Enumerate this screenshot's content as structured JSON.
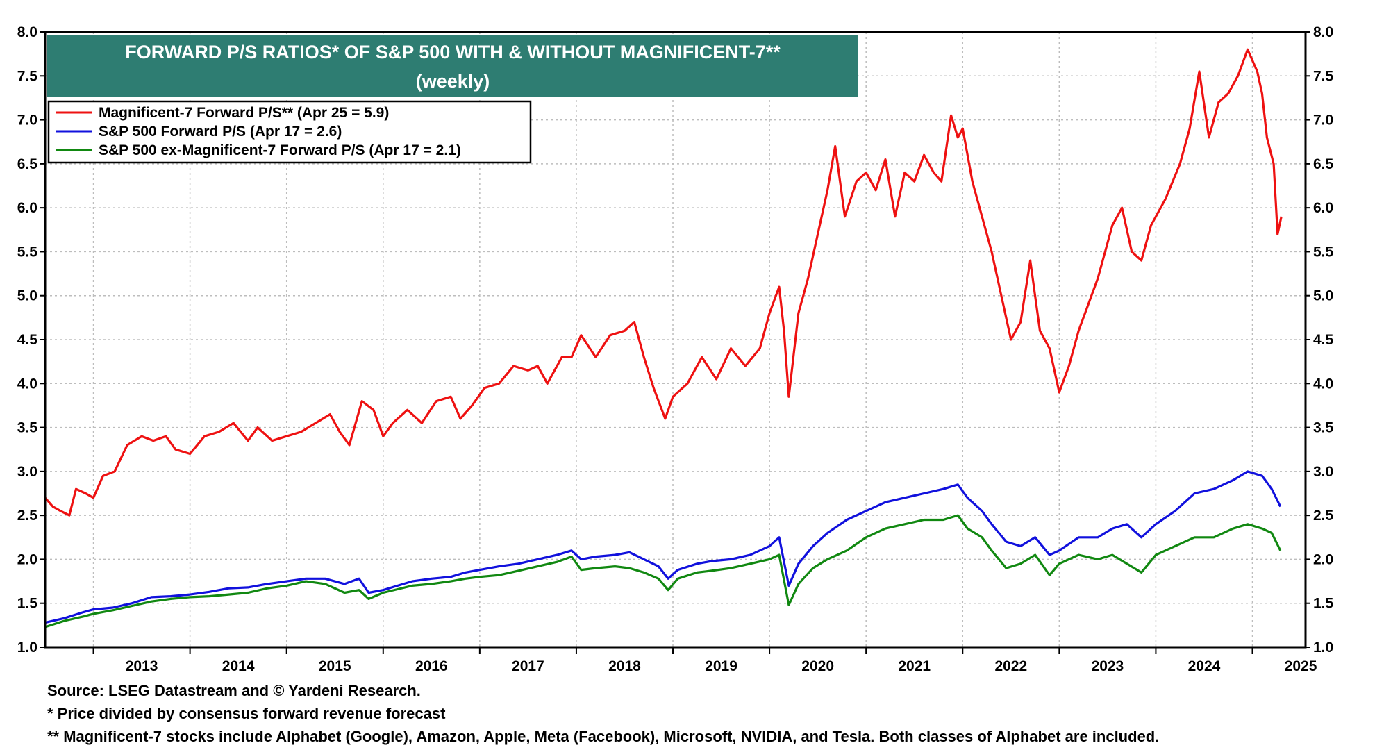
{
  "chart_data": {
    "type": "line",
    "title": "FORWARD P/S RATIOS* OF S&P 500 WITH & WITHOUT MAGNIFICENT-7**",
    "subtitle": "(weekly)",
    "xlabel": "",
    "ylabel": "",
    "xlim": [
      2012.5,
      2025.55
    ],
    "ylim": [
      1.0,
      8.0
    ],
    "y_ticks": [
      "1.0",
      "1.5",
      "2.0",
      "2.5",
      "3.0",
      "3.5",
      "4.0",
      "4.5",
      "5.0",
      "5.5",
      "6.0",
      "6.5",
      "7.0",
      "7.5",
      "8.0"
    ],
    "x_ticks": [
      "2013",
      "2014",
      "2015",
      "2016",
      "2017",
      "2018",
      "2019",
      "2020",
      "2021",
      "2022",
      "2023",
      "2024",
      "2025"
    ],
    "grid": true,
    "legend_position": "top-left",
    "series": [
      {
        "name": "Magnificent-7 Forward P/S** (Apr 25 = 5.9)",
        "color": "#ee1111",
        "points": [
          [
            2012.5,
            2.7
          ],
          [
            2012.58,
            2.6
          ],
          [
            2012.66,
            2.55
          ],
          [
            2012.75,
            2.5
          ],
          [
            2012.82,
            2.8
          ],
          [
            2012.92,
            2.75
          ],
          [
            2013.0,
            2.7
          ],
          [
            2013.1,
            2.95
          ],
          [
            2013.22,
            3.0
          ],
          [
            2013.35,
            3.3
          ],
          [
            2013.5,
            3.4
          ],
          [
            2013.62,
            3.35
          ],
          [
            2013.75,
            3.4
          ],
          [
            2013.85,
            3.25
          ],
          [
            2014.0,
            3.2
          ],
          [
            2014.15,
            3.4
          ],
          [
            2014.3,
            3.45
          ],
          [
            2014.45,
            3.55
          ],
          [
            2014.6,
            3.35
          ],
          [
            2014.7,
            3.5
          ],
          [
            2014.85,
            3.35
          ],
          [
            2015.0,
            3.4
          ],
          [
            2015.15,
            3.45
          ],
          [
            2015.3,
            3.55
          ],
          [
            2015.45,
            3.65
          ],
          [
            2015.55,
            3.45
          ],
          [
            2015.65,
            3.3
          ],
          [
            2015.78,
            3.8
          ],
          [
            2015.9,
            3.7
          ],
          [
            2016.0,
            3.4
          ],
          [
            2016.1,
            3.55
          ],
          [
            2016.25,
            3.7
          ],
          [
            2016.4,
            3.55
          ],
          [
            2016.55,
            3.8
          ],
          [
            2016.7,
            3.85
          ],
          [
            2016.8,
            3.6
          ],
          [
            2016.92,
            3.75
          ],
          [
            2017.05,
            3.95
          ],
          [
            2017.2,
            4.0
          ],
          [
            2017.35,
            4.2
          ],
          [
            2017.5,
            4.15
          ],
          [
            2017.6,
            4.2
          ],
          [
            2017.7,
            4.0
          ],
          [
            2017.85,
            4.3
          ],
          [
            2017.95,
            4.3
          ],
          [
            2018.05,
            4.55
          ],
          [
            2018.2,
            4.3
          ],
          [
            2018.35,
            4.55
          ],
          [
            2018.5,
            4.6
          ],
          [
            2018.6,
            4.7
          ],
          [
            2018.7,
            4.3
          ],
          [
            2018.8,
            3.95
          ],
          [
            2018.92,
            3.6
          ],
          [
            2019.0,
            3.85
          ],
          [
            2019.15,
            4.0
          ],
          [
            2019.3,
            4.3
          ],
          [
            2019.45,
            4.05
          ],
          [
            2019.6,
            4.4
          ],
          [
            2019.75,
            4.2
          ],
          [
            2019.9,
            4.4
          ],
          [
            2020.0,
            4.8
          ],
          [
            2020.1,
            5.1
          ],
          [
            2020.15,
            4.6
          ],
          [
            2020.2,
            3.85
          ],
          [
            2020.3,
            4.8
          ],
          [
            2020.4,
            5.2
          ],
          [
            2020.5,
            5.7
          ],
          [
            2020.6,
            6.2
          ],
          [
            2020.68,
            6.7
          ],
          [
            2020.78,
            5.9
          ],
          [
            2020.9,
            6.3
          ],
          [
            2021.0,
            6.4
          ],
          [
            2021.1,
            6.2
          ],
          [
            2021.2,
            6.55
          ],
          [
            2021.3,
            5.9
          ],
          [
            2021.4,
            6.4
          ],
          [
            2021.5,
            6.3
          ],
          [
            2021.6,
            6.6
          ],
          [
            2021.7,
            6.4
          ],
          [
            2021.78,
            6.3
          ],
          [
            2021.88,
            7.05
          ],
          [
            2021.95,
            6.8
          ],
          [
            2022.0,
            6.9
          ],
          [
            2022.1,
            6.3
          ],
          [
            2022.2,
            5.9
          ],
          [
            2022.3,
            5.5
          ],
          [
            2022.4,
            5.0
          ],
          [
            2022.5,
            4.5
          ],
          [
            2022.6,
            4.7
          ],
          [
            2022.7,
            5.4
          ],
          [
            2022.8,
            4.6
          ],
          [
            2022.9,
            4.4
          ],
          [
            2023.0,
            3.9
          ],
          [
            2023.1,
            4.2
          ],
          [
            2023.2,
            4.6
          ],
          [
            2023.3,
            4.9
          ],
          [
            2023.4,
            5.2
          ],
          [
            2023.55,
            5.8
          ],
          [
            2023.65,
            6.0
          ],
          [
            2023.75,
            5.5
          ],
          [
            2023.85,
            5.4
          ],
          [
            2023.95,
            5.8
          ],
          [
            2024.1,
            6.1
          ],
          [
            2024.25,
            6.5
          ],
          [
            2024.35,
            6.9
          ],
          [
            2024.45,
            7.55
          ],
          [
            2024.55,
            6.8
          ],
          [
            2024.65,
            7.2
          ],
          [
            2024.75,
            7.3
          ],
          [
            2024.85,
            7.5
          ],
          [
            2024.95,
            7.8
          ],
          [
            2025.05,
            7.55
          ],
          [
            2025.1,
            7.3
          ],
          [
            2025.15,
            6.8
          ],
          [
            2025.22,
            6.5
          ],
          [
            2025.26,
            5.7
          ],
          [
            2025.3,
            5.9
          ]
        ]
      },
      {
        "name": "S&P 500 Forward P/S (Apr 17 = 2.6)",
        "color": "#1111dd",
        "points": [
          [
            2012.5,
            1.28
          ],
          [
            2012.7,
            1.33
          ],
          [
            2012.9,
            1.4
          ],
          [
            2013.0,
            1.43
          ],
          [
            2013.2,
            1.45
          ],
          [
            2013.4,
            1.5
          ],
          [
            2013.6,
            1.57
          ],
          [
            2013.8,
            1.58
          ],
          [
            2014.0,
            1.6
          ],
          [
            2014.2,
            1.63
          ],
          [
            2014.4,
            1.67
          ],
          [
            2014.6,
            1.68
          ],
          [
            2014.8,
            1.72
          ],
          [
            2015.0,
            1.75
          ],
          [
            2015.2,
            1.78
          ],
          [
            2015.4,
            1.78
          ],
          [
            2015.6,
            1.72
          ],
          [
            2015.75,
            1.78
          ],
          [
            2015.85,
            1.62
          ],
          [
            2016.0,
            1.65
          ],
          [
            2016.15,
            1.7
          ],
          [
            2016.3,
            1.75
          ],
          [
            2016.5,
            1.78
          ],
          [
            2016.7,
            1.8
          ],
          [
            2016.85,
            1.85
          ],
          [
            2017.0,
            1.88
          ],
          [
            2017.2,
            1.92
          ],
          [
            2017.4,
            1.95
          ],
          [
            2017.6,
            2.0
          ],
          [
            2017.8,
            2.05
          ],
          [
            2017.95,
            2.1
          ],
          [
            2018.05,
            2.0
          ],
          [
            2018.2,
            2.03
          ],
          [
            2018.4,
            2.05
          ],
          [
            2018.55,
            2.08
          ],
          [
            2018.7,
            2.0
          ],
          [
            2018.85,
            1.92
          ],
          [
            2018.95,
            1.78
          ],
          [
            2019.05,
            1.88
          ],
          [
            2019.25,
            1.95
          ],
          [
            2019.4,
            1.98
          ],
          [
            2019.6,
            2.0
          ],
          [
            2019.8,
            2.05
          ],
          [
            2020.0,
            2.15
          ],
          [
            2020.1,
            2.25
          ],
          [
            2020.2,
            1.7
          ],
          [
            2020.3,
            1.95
          ],
          [
            2020.45,
            2.15
          ],
          [
            2020.6,
            2.3
          ],
          [
            2020.8,
            2.45
          ],
          [
            2021.0,
            2.55
          ],
          [
            2021.2,
            2.65
          ],
          [
            2021.4,
            2.7
          ],
          [
            2021.6,
            2.75
          ],
          [
            2021.8,
            2.8
          ],
          [
            2021.95,
            2.85
          ],
          [
            2022.05,
            2.7
          ],
          [
            2022.2,
            2.55
          ],
          [
            2022.3,
            2.4
          ],
          [
            2022.45,
            2.2
          ],
          [
            2022.6,
            2.15
          ],
          [
            2022.75,
            2.25
          ],
          [
            2022.9,
            2.05
          ],
          [
            2023.0,
            2.1
          ],
          [
            2023.2,
            2.25
          ],
          [
            2023.4,
            2.25
          ],
          [
            2023.55,
            2.35
          ],
          [
            2023.7,
            2.4
          ],
          [
            2023.85,
            2.25
          ],
          [
            2024.0,
            2.4
          ],
          [
            2024.2,
            2.55
          ],
          [
            2024.4,
            2.75
          ],
          [
            2024.6,
            2.8
          ],
          [
            2024.8,
            2.9
          ],
          [
            2024.95,
            3.0
          ],
          [
            2025.1,
            2.95
          ],
          [
            2025.2,
            2.8
          ],
          [
            2025.29,
            2.6
          ]
        ]
      },
      {
        "name": "S&P 500 ex-Magnificent-7 Forward P/S (Apr 17 = 2.1)",
        "color": "#118811",
        "points": [
          [
            2012.5,
            1.23
          ],
          [
            2012.7,
            1.3
          ],
          [
            2012.9,
            1.35
          ],
          [
            2013.0,
            1.38
          ],
          [
            2013.2,
            1.42
          ],
          [
            2013.4,
            1.47
          ],
          [
            2013.6,
            1.52
          ],
          [
            2013.8,
            1.55
          ],
          [
            2014.0,
            1.57
          ],
          [
            2014.2,
            1.58
          ],
          [
            2014.4,
            1.6
          ],
          [
            2014.6,
            1.62
          ],
          [
            2014.8,
            1.67
          ],
          [
            2015.0,
            1.7
          ],
          [
            2015.2,
            1.75
          ],
          [
            2015.4,
            1.72
          ],
          [
            2015.6,
            1.62
          ],
          [
            2015.75,
            1.65
          ],
          [
            2015.85,
            1.55
          ],
          [
            2016.0,
            1.62
          ],
          [
            2016.15,
            1.66
          ],
          [
            2016.3,
            1.7
          ],
          [
            2016.5,
            1.72
          ],
          [
            2016.7,
            1.75
          ],
          [
            2016.85,
            1.78
          ],
          [
            2017.0,
            1.8
          ],
          [
            2017.2,
            1.82
          ],
          [
            2017.4,
            1.87
          ],
          [
            2017.6,
            1.92
          ],
          [
            2017.8,
            1.97
          ],
          [
            2017.95,
            2.03
          ],
          [
            2018.05,
            1.88
          ],
          [
            2018.2,
            1.9
          ],
          [
            2018.4,
            1.92
          ],
          [
            2018.55,
            1.9
          ],
          [
            2018.7,
            1.85
          ],
          [
            2018.85,
            1.78
          ],
          [
            2018.95,
            1.65
          ],
          [
            2019.05,
            1.78
          ],
          [
            2019.25,
            1.85
          ],
          [
            2019.4,
            1.87
          ],
          [
            2019.6,
            1.9
          ],
          [
            2019.8,
            1.95
          ],
          [
            2020.0,
            2.0
          ],
          [
            2020.1,
            2.05
          ],
          [
            2020.2,
            1.48
          ],
          [
            2020.3,
            1.72
          ],
          [
            2020.45,
            1.9
          ],
          [
            2020.6,
            2.0
          ],
          [
            2020.8,
            2.1
          ],
          [
            2021.0,
            2.25
          ],
          [
            2021.2,
            2.35
          ],
          [
            2021.4,
            2.4
          ],
          [
            2021.6,
            2.45
          ],
          [
            2021.8,
            2.45
          ],
          [
            2021.95,
            2.5
          ],
          [
            2022.05,
            2.35
          ],
          [
            2022.2,
            2.25
          ],
          [
            2022.3,
            2.1
          ],
          [
            2022.45,
            1.9
          ],
          [
            2022.6,
            1.95
          ],
          [
            2022.75,
            2.05
          ],
          [
            2022.9,
            1.82
          ],
          [
            2023.0,
            1.95
          ],
          [
            2023.2,
            2.05
          ],
          [
            2023.4,
            2.0
          ],
          [
            2023.55,
            2.05
          ],
          [
            2023.7,
            1.95
          ],
          [
            2023.85,
            1.85
          ],
          [
            2024.0,
            2.05
          ],
          [
            2024.2,
            2.15
          ],
          [
            2024.4,
            2.25
          ],
          [
            2024.6,
            2.25
          ],
          [
            2024.8,
            2.35
          ],
          [
            2024.95,
            2.4
          ],
          [
            2025.1,
            2.35
          ],
          [
            2025.2,
            2.3
          ],
          [
            2025.29,
            2.1
          ]
        ]
      }
    ]
  },
  "footnotes": {
    "source": "Source: LSEG Datastream and © Yardeni Research.",
    "note1": "* Price divided by consensus forward revenue forecast",
    "note2": "** Magnificent-7 stocks include Alphabet (Google), Amazon, Apple, Meta (Facebook), Microsoft, NVIDIA, and Tesla. Both classes of Alphabet are included."
  },
  "colors": {
    "title_banner": "#2e7d72",
    "grid": "#bdbdbd",
    "frame": "#000000"
  }
}
